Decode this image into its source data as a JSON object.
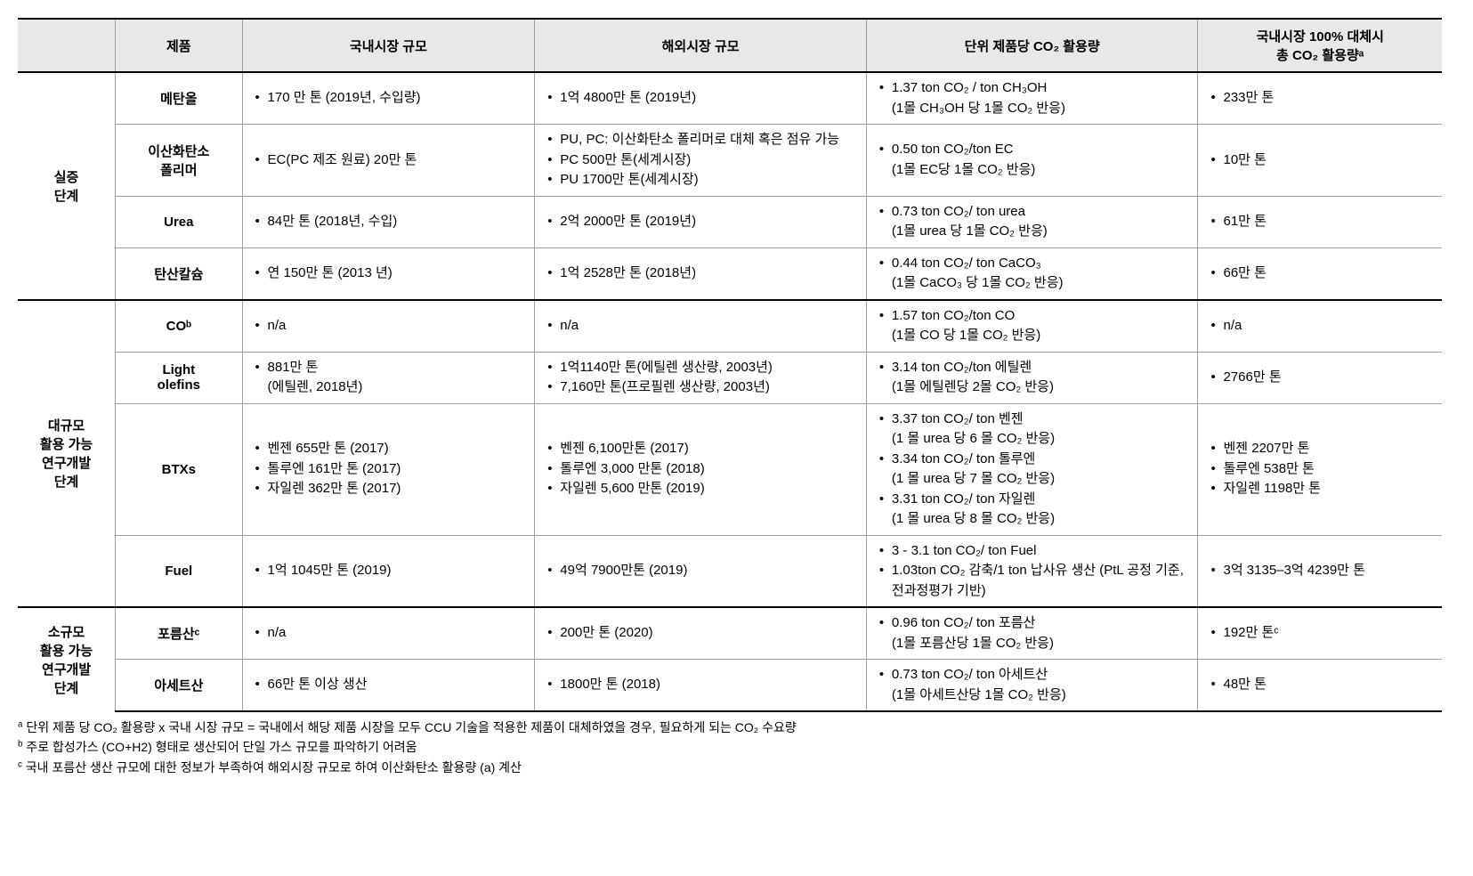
{
  "headers": {
    "h0": "",
    "h1": "제품",
    "h2": "국내시장 규모",
    "h3": "해외시장 규모",
    "h4": "단위 제품당 CO₂ 활용량",
    "h5_line1": "국내시장 100% 대체시",
    "h5_line2": "총 CO₂ 활용량ᵃ"
  },
  "stages": {
    "s0": "실증\n단계",
    "s1": "대규모\n활용 가능\n연구개발\n단계",
    "s2": "소규모\n활용 가능\n연구개발\n단계"
  },
  "rows": [
    {
      "product": "메탄올",
      "domestic": [
        "170 만 톤 (2019년, 수입량)"
      ],
      "overseas": [
        "1억 4800만 톤 (2019년)"
      ],
      "unit": [
        "1.37 ton CO₂ / ton CH₃OH\n(1몰 CH₃OH 당 1몰 CO₂ 반응)"
      ],
      "total": [
        "233만 톤"
      ]
    },
    {
      "product": "이산화탄소\n폴리머",
      "domestic": [
        "EC(PC 제조 원료) 20만 톤"
      ],
      "overseas": [
        "PU, PC: 이산화탄소 폴리머로 대체 혹은 점유 가능",
        "PC 500만 톤(세계시장)",
        "PU 1700만 톤(세계시장)"
      ],
      "unit": [
        "0.50 ton CO₂/ton EC\n  (1몰 EC당 1몰 CO₂ 반응)"
      ],
      "total": [
        "10만 톤"
      ]
    },
    {
      "product": "Urea",
      "domestic": [
        "84만 톤 (2018년, 수입)"
      ],
      "overseas": [
        "2억 2000만 톤 (2019년)"
      ],
      "unit": [
        "0.73 ton CO₂/ ton urea\n(1몰 urea 당 1몰 CO₂ 반응)"
      ],
      "total": [
        "61만 톤"
      ]
    },
    {
      "product": "탄산칼슘",
      "domestic": [
        "연 150만 톤 (2013 년)"
      ],
      "overseas": [
        "1억 2528만 톤 (2018년)"
      ],
      "unit": [
        "0.44 ton CO₂/ ton CaCO₃\n(1몰 CaCO₃ 당 1몰 CO₂ 반응)"
      ],
      "total": [
        "66만 톤"
      ]
    },
    {
      "product": "COᵇ",
      "domestic": [
        "n/a"
      ],
      "overseas": [
        "n/a"
      ],
      "unit": [
        "1.57 ton CO₂/ton CO\n(1몰 CO 당 1몰 CO₂ 반응)"
      ],
      "total": [
        "n/a"
      ]
    },
    {
      "product": "Light\nolefins",
      "domestic": [
        "881만 톤\n(에틸렌, 2018년)"
      ],
      "overseas": [
        "1억1140만 톤(에틸렌 생산량, 2003년)",
        "7,160만 톤(프로필렌 생산량, 2003년)"
      ],
      "unit": [
        "3.14 ton CO₂/ton 에틸렌\n(1몰 에틸렌당 2몰 CO₂ 반응)"
      ],
      "total": [
        "2766만 톤"
      ]
    },
    {
      "product": "BTXs",
      "domestic": [
        "벤젠 655만 톤 (2017)",
        "톨루엔 161만 톤 (2017)",
        "자일렌 362만 톤 (2017)"
      ],
      "overseas": [
        "벤젠 6,100만톤 (2017)",
        "톨루엔 3,000 만톤 (2018)",
        "자일렌 5,600 만톤 (2019)"
      ],
      "unit": [
        "3.37 ton CO₂/ ton 벤젠\n(1 몰 urea 당 6 몰 CO₂ 반응)",
        "3.34 ton CO₂/ ton 톨루엔\n(1 몰 urea 당 7 몰 CO₂ 반응)",
        "3.31 ton CO₂/ ton 자일렌\n(1 몰 urea 당 8 몰 CO₂ 반응)"
      ],
      "total": [
        "벤젠 2207만 톤",
        "톨루엔 538만 톤",
        "자일렌 1198만 톤"
      ]
    },
    {
      "product": "Fuel",
      "domestic": [
        "1억 1045만 톤 (2019)"
      ],
      "overseas": [
        "49억 7900만톤 (2019)"
      ],
      "unit": [
        "3 - 3.1 ton CO₂/ ton Fuel",
        "1.03ton CO₂ 감축/1 ton 납사유 생산 (PtL 공정 기준, 전과정평가 기반)"
      ],
      "total": [
        "3억 3135–3억 4239만 톤"
      ]
    },
    {
      "product": "포름산ᶜ",
      "domestic": [
        "n/a"
      ],
      "overseas": [
        "200만 톤 (2020)"
      ],
      "unit": [
        "0.96 ton CO₂/ ton 포름산\n(1몰 포름산당 1몰 CO₂ 반응)"
      ],
      "total": [
        "192만 톤ᶜ"
      ]
    },
    {
      "product": "아세트산",
      "domestic": [
        "66만 톤 이상 생산"
      ],
      "overseas": [
        "1800만 톤 (2018)"
      ],
      "unit": [
        "0.73 ton CO₂/ ton 아세트산\n(1몰 아세트산당 1몰 CO₂ 반응)"
      ],
      "total": [
        "48만 톤"
      ]
    }
  ],
  "footnotes": {
    "a": "단위 제품 당 CO₂ 활용량 x 국내 시장 규모 = 국내에서 해당 제품 시장을 모두 CCU 기술을 적용한 제품이 대체하였을 경우, 필요하게 되는 CO₂ 수요량",
    "b": "주로 합성가스 (CO+H2) 형태로 생산되어 단일 가스 규모를 파악하기 어려움",
    "c": "국내 포름산 생산 규모에 대한 정보가 부족하여 해외시장 규모로 하여 이산화탄소 활용량 (a) 계산"
  }
}
